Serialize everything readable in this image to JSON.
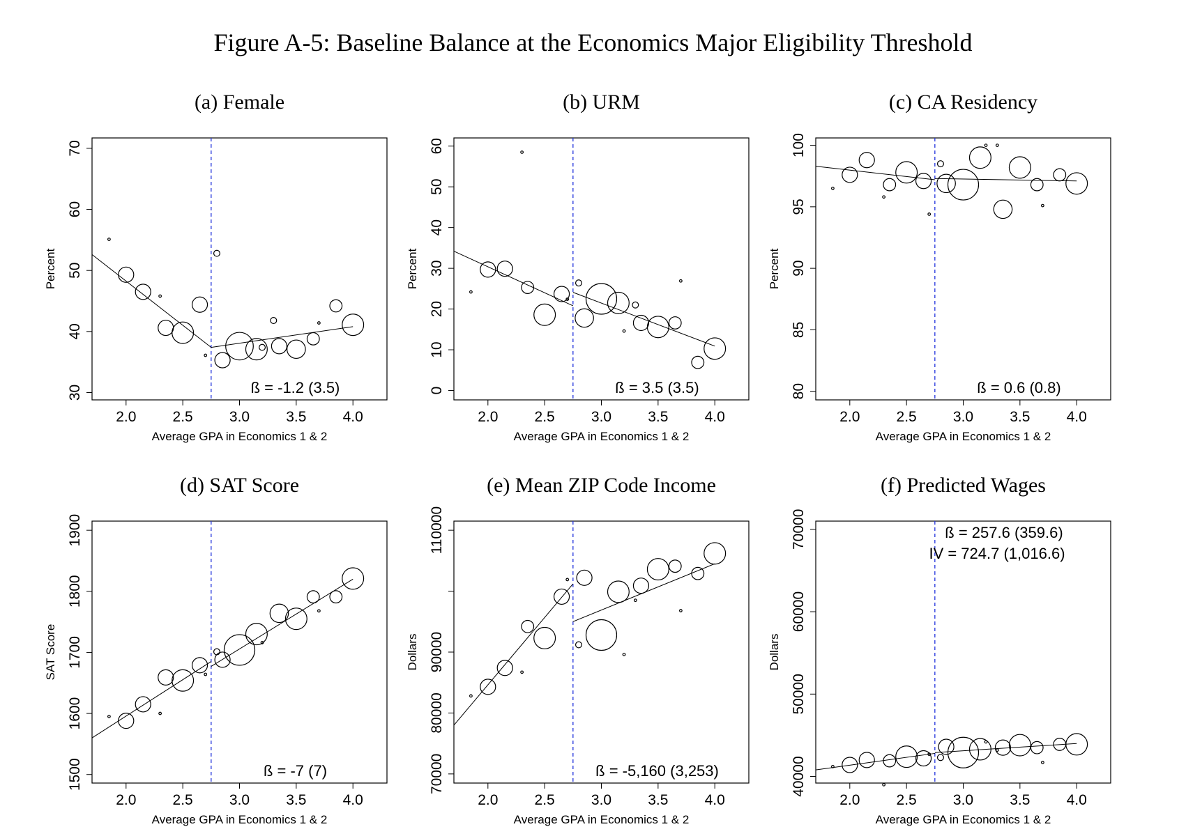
{
  "figure_title": "Figure A-5: Baseline Balance at the Economics Major Eligibility Threshold",
  "chart_data": [
    {
      "type": "scatter",
      "title": "(a) Female",
      "xlabel": "Average GPA in Economics 1 & 2",
      "ylabel": "Percent",
      "xlim": [
        1.7,
        4.3
      ],
      "ylim": [
        28.8,
        71.7
      ],
      "xticks": [
        2.0,
        2.5,
        3.0,
        3.5,
        4.0
      ],
      "xtick_labels": [
        "2.0",
        "2.5",
        "3.0",
        "3.5",
        "4.0"
      ],
      "yticks": [
        30,
        40,
        50,
        60,
        70
      ],
      "ytick_labels": [
        "30",
        "40",
        "50",
        "60",
        "70"
      ],
      "cutoff": 2.75,
      "annotations": [
        "ß = -1.2 (3.5)"
      ],
      "points": [
        {
          "x": 1.85,
          "y": 55.1,
          "size": 1
        },
        {
          "x": 2.0,
          "y": 49.3,
          "size": 5
        },
        {
          "x": 2.15,
          "y": 46.5,
          "size": 5
        },
        {
          "x": 2.3,
          "y": 45.8,
          "size": 1
        },
        {
          "x": 2.35,
          "y": 40.6,
          "size": 5
        },
        {
          "x": 2.5,
          "y": 39.8,
          "size": 7
        },
        {
          "x": 2.65,
          "y": 44.4,
          "size": 5
        },
        {
          "x": 2.7,
          "y": 36.1,
          "size": 1
        },
        {
          "x": 2.8,
          "y": 52.8,
          "size": 2
        },
        {
          "x": 2.85,
          "y": 35.3,
          "size": 5
        },
        {
          "x": 3.0,
          "y": 37.6,
          "size": 9
        },
        {
          "x": 3.15,
          "y": 37.1,
          "size": 7
        },
        {
          "x": 3.2,
          "y": 37.4,
          "size": 2
        },
        {
          "x": 3.3,
          "y": 41.8,
          "size": 2
        },
        {
          "x": 3.35,
          "y": 37.6,
          "size": 5
        },
        {
          "x": 3.5,
          "y": 37.1,
          "size": 6
        },
        {
          "x": 3.65,
          "y": 38.8,
          "size": 4
        },
        {
          "x": 3.7,
          "y": 41.4,
          "size": 1
        },
        {
          "x": 3.85,
          "y": 44.2,
          "size": 4
        },
        {
          "x": 4.0,
          "y": 41.1,
          "size": 7
        }
      ],
      "fit_left": {
        "x": [
          1.7,
          2.75
        ],
        "y": [
          52.6,
          37.4
        ]
      },
      "fit_right": {
        "x": [
          2.75,
          4.0
        ],
        "y": [
          37.4,
          40.8
        ]
      }
    },
    {
      "type": "scatter",
      "title": "(b) URM",
      "xlabel": "Average GPA in Economics 1 & 2",
      "ylabel": "Percent",
      "xlim": [
        1.7,
        4.3
      ],
      "ylim": [
        -2.3,
        62.0
      ],
      "xticks": [
        2.0,
        2.5,
        3.0,
        3.5,
        4.0
      ],
      "xtick_labels": [
        "2.0",
        "2.5",
        "3.0",
        "3.5",
        "4.0"
      ],
      "yticks": [
        0,
        10,
        20,
        30,
        40,
        50,
        60
      ],
      "ytick_labels": [
        "0",
        "10",
        "20",
        "30",
        "40",
        "50",
        "60"
      ],
      "cutoff": 2.75,
      "annotations": [
        "ß = 3.5 (3.5)"
      ],
      "points": [
        {
          "x": 1.85,
          "y": 24.2,
          "size": 1
        },
        {
          "x": 2.0,
          "y": 29.7,
          "size": 5
        },
        {
          "x": 2.15,
          "y": 29.9,
          "size": 5
        },
        {
          "x": 2.3,
          "y": 58.5,
          "size": 1
        },
        {
          "x": 2.35,
          "y": 25.3,
          "size": 4
        },
        {
          "x": 2.5,
          "y": 18.6,
          "size": 7
        },
        {
          "x": 2.65,
          "y": 23.7,
          "size": 5
        },
        {
          "x": 2.7,
          "y": 22.4,
          "size": 1
        },
        {
          "x": 2.8,
          "y": 26.4,
          "size": 2
        },
        {
          "x": 2.85,
          "y": 17.8,
          "size": 6
        },
        {
          "x": 3.0,
          "y": 22.5,
          "size": 10
        },
        {
          "x": 3.15,
          "y": 21.5,
          "size": 7
        },
        {
          "x": 3.2,
          "y": 14.6,
          "size": 1
        },
        {
          "x": 3.3,
          "y": 21.0,
          "size": 2
        },
        {
          "x": 3.35,
          "y": 16.6,
          "size": 5
        },
        {
          "x": 3.5,
          "y": 15.6,
          "size": 7
        },
        {
          "x": 3.65,
          "y": 16.6,
          "size": 4
        },
        {
          "x": 3.7,
          "y": 26.9,
          "size": 1
        },
        {
          "x": 3.85,
          "y": 6.9,
          "size": 4
        },
        {
          "x": 4.0,
          "y": 10.3,
          "size": 7
        }
      ],
      "fit_left": {
        "x": [
          1.7,
          2.75
        ],
        "y": [
          34.2,
          20.8
        ]
      },
      "fit_right": {
        "x": [
          2.75,
          4.0
        ],
        "y": [
          24.1,
          10.9
        ]
      }
    },
    {
      "type": "scatter",
      "title": "(c) CA Residency",
      "xlabel": "Average GPA in Economics 1 & 2",
      "ylabel": "Percent",
      "xlim": [
        1.7,
        4.3
      ],
      "ylim": [
        79.3,
        100.6
      ],
      "xticks": [
        2.0,
        2.5,
        3.0,
        3.5,
        4.0
      ],
      "xtick_labels": [
        "2.0",
        "2.5",
        "3.0",
        "3.5",
        "4.0"
      ],
      "yticks": [
        80,
        85,
        90,
        95,
        100
      ],
      "ytick_labels": [
        "80",
        "85",
        "90",
        "95",
        "100"
      ],
      "cutoff": 2.75,
      "annotations": [
        "ß = 0.6 (0.8)"
      ],
      "points": [
        {
          "x": 1.85,
          "y": 96.5,
          "size": 1
        },
        {
          "x": 2.0,
          "y": 97.6,
          "size": 5
        },
        {
          "x": 2.15,
          "y": 98.8,
          "size": 5
        },
        {
          "x": 2.3,
          "y": 95.8,
          "size": 1
        },
        {
          "x": 2.35,
          "y": 96.8,
          "size": 4
        },
        {
          "x": 2.5,
          "y": 97.8,
          "size": 7
        },
        {
          "x": 2.65,
          "y": 97.1,
          "size": 5
        },
        {
          "x": 2.7,
          "y": 94.4,
          "size": 1
        },
        {
          "x": 2.8,
          "y": 98.5,
          "size": 2
        },
        {
          "x": 2.85,
          "y": 96.9,
          "size": 6
        },
        {
          "x": 3.0,
          "y": 96.8,
          "size": 10
        },
        {
          "x": 3.15,
          "y": 99.0,
          "size": 7
        },
        {
          "x": 3.2,
          "y": 100.0,
          "size": 1
        },
        {
          "x": 3.3,
          "y": 100.0,
          "size": 1
        },
        {
          "x": 3.35,
          "y": 94.8,
          "size": 6
        },
        {
          "x": 3.5,
          "y": 98.2,
          "size": 7
        },
        {
          "x": 3.65,
          "y": 96.8,
          "size": 4
        },
        {
          "x": 3.7,
          "y": 95.1,
          "size": 1
        },
        {
          "x": 3.85,
          "y": 97.6,
          "size": 4
        },
        {
          "x": 4.0,
          "y": 96.9,
          "size": 7
        }
      ],
      "fit_left": {
        "x": [
          1.7,
          2.75
        ],
        "y": [
          98.3,
          97.2
        ]
      },
      "fit_right": {
        "x": [
          2.75,
          4.0
        ],
        "y": [
          97.3,
          97.1
        ]
      }
    },
    {
      "type": "scatter",
      "title": "(d) SAT Score",
      "xlabel": "Average GPA in Economics 1 & 2",
      "ylabel": "SAT Score",
      "xlim": [
        1.7,
        4.3
      ],
      "ylim": [
        1486,
        1915
      ],
      "xticks": [
        2.0,
        2.5,
        3.0,
        3.5,
        4.0
      ],
      "xtick_labels": [
        "2.0",
        "2.5",
        "3.0",
        "3.5",
        "4.0"
      ],
      "yticks": [
        1500,
        1600,
        1700,
        1800,
        1900
      ],
      "ytick_labels": [
        "1500",
        "1600",
        "1700",
        "1800",
        "1900"
      ],
      "cutoff": 2.75,
      "annotations": [
        "ß = -7 (7)"
      ],
      "points": [
        {
          "x": 1.85,
          "y": 1595,
          "size": 1
        },
        {
          "x": 2.0,
          "y": 1588,
          "size": 5
        },
        {
          "x": 2.15,
          "y": 1615,
          "size": 5
        },
        {
          "x": 2.3,
          "y": 1600,
          "size": 1
        },
        {
          "x": 2.35,
          "y": 1659,
          "size": 5
        },
        {
          "x": 2.5,
          "y": 1654,
          "size": 7
        },
        {
          "x": 2.65,
          "y": 1679,
          "size": 5
        },
        {
          "x": 2.7,
          "y": 1664,
          "size": 1
        },
        {
          "x": 2.8,
          "y": 1701,
          "size": 2
        },
        {
          "x": 2.85,
          "y": 1688,
          "size": 5
        },
        {
          "x": 3.0,
          "y": 1704,
          "size": 10
        },
        {
          "x": 3.15,
          "y": 1730,
          "size": 7
        },
        {
          "x": 3.2,
          "y": 1716,
          "size": 1
        },
        {
          "x": 3.35,
          "y": 1764,
          "size": 6
        },
        {
          "x": 3.5,
          "y": 1755,
          "size": 7
        },
        {
          "x": 3.65,
          "y": 1791,
          "size": 4
        },
        {
          "x": 3.7,
          "y": 1768,
          "size": 1
        },
        {
          "x": 3.85,
          "y": 1791,
          "size": 4
        },
        {
          "x": 4.0,
          "y": 1821,
          "size": 7
        }
      ],
      "fit_left": {
        "x": [
          1.7,
          2.75
        ],
        "y": [
          1560,
          1685
        ]
      },
      "fit_right": {
        "x": [
          2.75,
          4.0
        ],
        "y": [
          1677,
          1820
        ]
      }
    },
    {
      "type": "scatter",
      "title": "(e) Mean ZIP Code Income",
      "xlabel": "Average GPA in Economics 1 & 2",
      "ylabel": "Dollars",
      "xlim": [
        1.7,
        4.3
      ],
      "ylim": [
        68500,
        111500
      ],
      "xticks": [
        2.0,
        2.5,
        3.0,
        3.5,
        4.0
      ],
      "xtick_labels": [
        "2.0",
        "2.5",
        "3.0",
        "3.5",
        "4.0"
      ],
      "yticks": [
        70000,
        80000,
        90000,
        100000,
        110000
      ],
      "ytick_labels": [
        "70000",
        "80000",
        "90000",
        "",
        "110000"
      ],
      "cutoff": 2.75,
      "annotations": [
        "ß = -5,160 (3,253)"
      ],
      "points": [
        {
          "x": 1.85,
          "y": 82800,
          "size": 1
        },
        {
          "x": 2.0,
          "y": 84300,
          "size": 5
        },
        {
          "x": 2.15,
          "y": 87400,
          "size": 5
        },
        {
          "x": 2.3,
          "y": 86700,
          "size": 1
        },
        {
          "x": 2.35,
          "y": 94200,
          "size": 4
        },
        {
          "x": 2.5,
          "y": 92300,
          "size": 7
        },
        {
          "x": 2.65,
          "y": 99100,
          "size": 5
        },
        {
          "x": 2.7,
          "y": 101900,
          "size": 1
        },
        {
          "x": 2.8,
          "y": 91200,
          "size": 2
        },
        {
          "x": 2.85,
          "y": 102200,
          "size": 5
        },
        {
          "x": 3.0,
          "y": 92800,
          "size": 10
        },
        {
          "x": 3.15,
          "y": 99900,
          "size": 7
        },
        {
          "x": 3.2,
          "y": 89600,
          "size": 1
        },
        {
          "x": 3.3,
          "y": 98500,
          "size": 1
        },
        {
          "x": 3.35,
          "y": 100900,
          "size": 5
        },
        {
          "x": 3.5,
          "y": 103600,
          "size": 7
        },
        {
          "x": 3.65,
          "y": 104100,
          "size": 4
        },
        {
          "x": 3.7,
          "y": 96800,
          "size": 1
        },
        {
          "x": 3.85,
          "y": 102900,
          "size": 4
        },
        {
          "x": 4.0,
          "y": 106200,
          "size": 7
        }
      ],
      "fit_left": {
        "x": [
          1.7,
          2.75
        ],
        "y": [
          78000,
          101200
        ]
      },
      "fit_right": {
        "x": [
          2.75,
          4.0
        ],
        "y": [
          95000,
          104500
        ]
      }
    },
    {
      "type": "scatter",
      "title": "(f) Predicted Wages",
      "xlabel": "Average GPA in Economics 1 & 2",
      "ylabel": "Dollars",
      "xlim": [
        1.7,
        4.3
      ],
      "ylim": [
        39200,
        71000
      ],
      "xticks": [
        2.0,
        2.5,
        3.0,
        3.5,
        4.0
      ],
      "xtick_labels": [
        "2.0",
        "2.5",
        "3.0",
        "3.5",
        "4.0"
      ],
      "yticks": [
        40000,
        50000,
        60000,
        70000
      ],
      "ytick_labels": [
        "40000",
        "50000",
        "60000",
        "70000"
      ],
      "cutoff": 2.75,
      "annotations": [
        "ß = 257.6 (359.6)",
        "IV = 724.7 (1,016.6)"
      ],
      "points": [
        {
          "x": 1.85,
          "y": 41200,
          "size": 1
        },
        {
          "x": 2.0,
          "y": 41400,
          "size": 5
        },
        {
          "x": 2.15,
          "y": 42000,
          "size": 5
        },
        {
          "x": 2.3,
          "y": 39000,
          "size": 1
        },
        {
          "x": 2.35,
          "y": 41900,
          "size": 4
        },
        {
          "x": 2.5,
          "y": 42400,
          "size": 7
        },
        {
          "x": 2.65,
          "y": 42200,
          "size": 5
        },
        {
          "x": 2.7,
          "y": 42700,
          "size": 1
        },
        {
          "x": 2.8,
          "y": 42300,
          "size": 2
        },
        {
          "x": 2.85,
          "y": 43600,
          "size": 5
        },
        {
          "x": 3.0,
          "y": 42900,
          "size": 10
        },
        {
          "x": 3.15,
          "y": 43300,
          "size": 7
        },
        {
          "x": 3.2,
          "y": 44200,
          "size": 1
        },
        {
          "x": 3.3,
          "y": 43200,
          "size": 1
        },
        {
          "x": 3.35,
          "y": 43500,
          "size": 5
        },
        {
          "x": 3.5,
          "y": 43800,
          "size": 7
        },
        {
          "x": 3.65,
          "y": 43500,
          "size": 4
        },
        {
          "x": 3.7,
          "y": 41700,
          "size": 1
        },
        {
          "x": 3.85,
          "y": 43900,
          "size": 4
        },
        {
          "x": 4.0,
          "y": 43900,
          "size": 7
        }
      ],
      "fit_left": {
        "x": [
          1.7,
          2.75
        ],
        "y": [
          40800,
          42800
        ]
      },
      "fit_right": {
        "x": [
          2.75,
          4.0
        ],
        "y": [
          42900,
          44000
        ]
      }
    }
  ]
}
